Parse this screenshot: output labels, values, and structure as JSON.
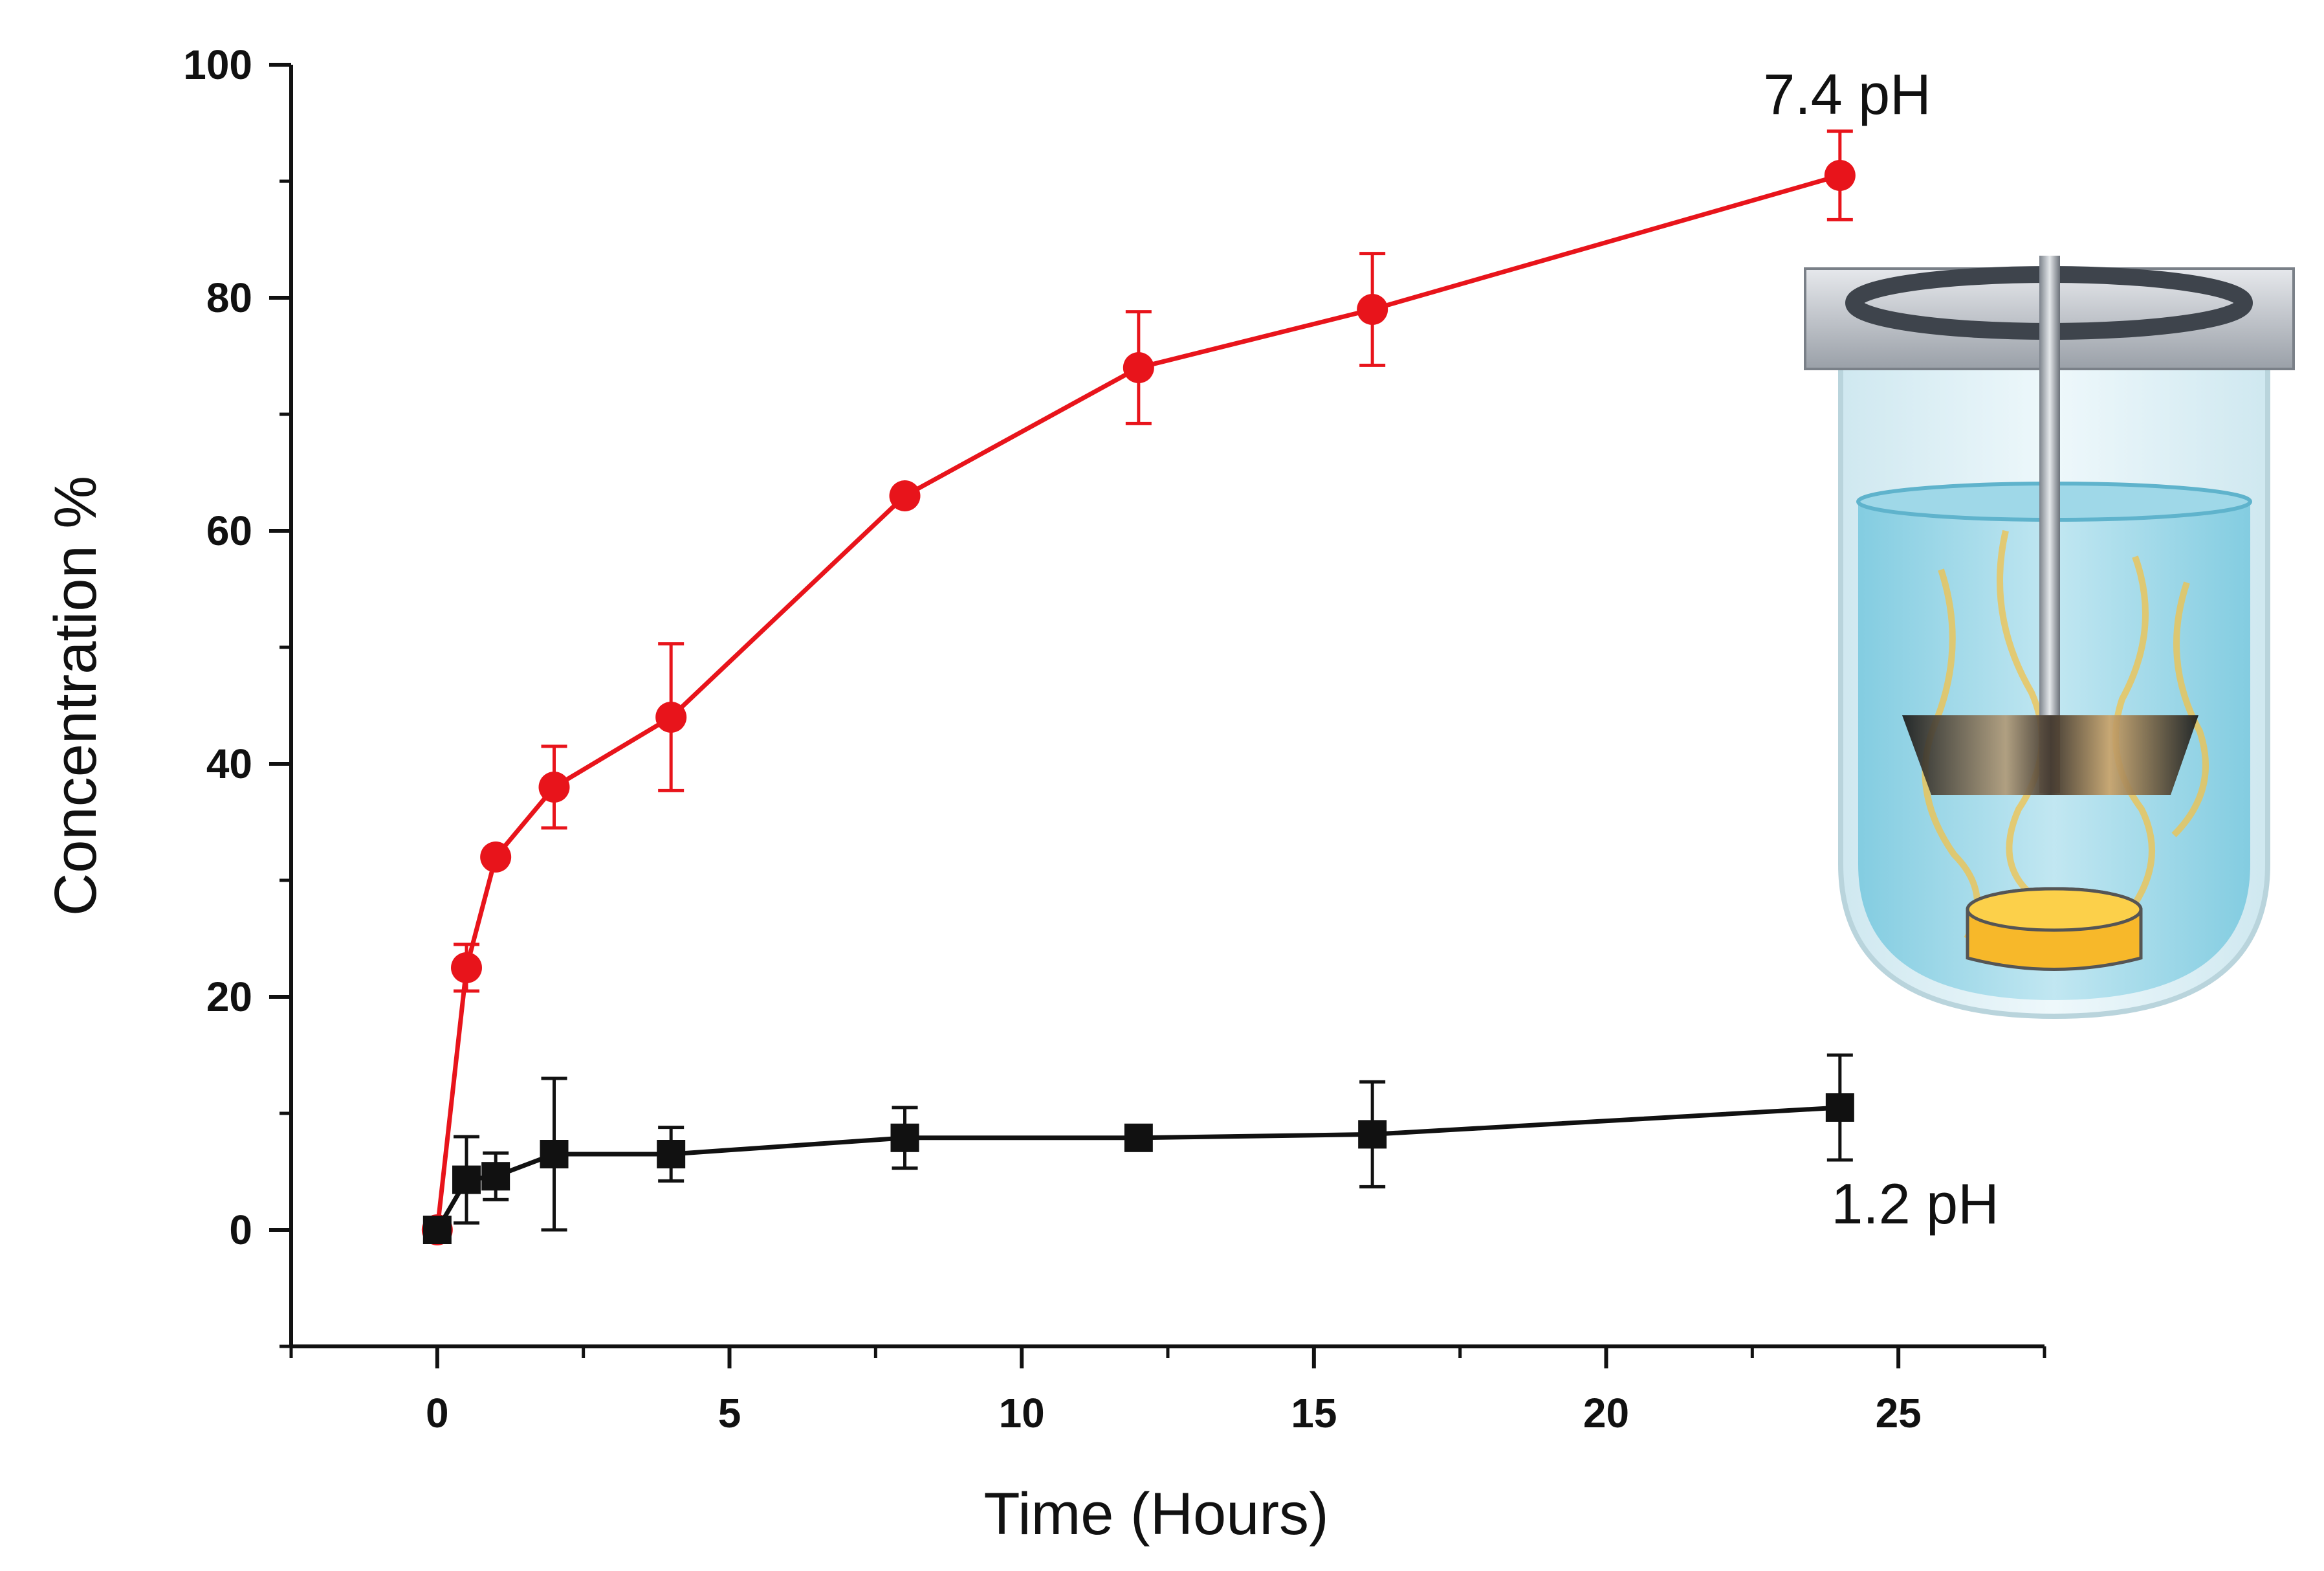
{
  "chart_data": {
    "type": "line",
    "xlabel": "Time (Hours)",
    "ylabel": "Concentration %",
    "xlim": [
      -2.5,
      27.5
    ],
    "ylim": [
      -10,
      100
    ],
    "xticks": [
      0,
      5,
      10,
      15,
      20,
      25
    ],
    "yticks": [
      0,
      20,
      40,
      60,
      80,
      100
    ],
    "grid": false,
    "series": [
      {
        "name": "7.4 pH",
        "color": "#e8141b",
        "marker": "circle",
        "x": [
          0,
          0.5,
          1,
          2,
          4,
          8,
          12,
          16,
          24
        ],
        "y": [
          0,
          22.5,
          32,
          38,
          44,
          63,
          74,
          79,
          90.5
        ],
        "err": [
          0,
          2.0,
          0,
          3.5,
          6.3,
          0,
          4.8,
          4.8,
          3.8
        ]
      },
      {
        "name": "1.2 pH",
        "color": "#111111",
        "marker": "square",
        "x": [
          0,
          0.5,
          1,
          2,
          4,
          8,
          12,
          16,
          24
        ],
        "y": [
          0,
          4.3,
          4.6,
          6.5,
          6.5,
          7.9,
          7.9,
          8.2,
          10.5
        ],
        "err": [
          0,
          3.7,
          2.0,
          6.5,
          2.3,
          2.6,
          0,
          4.5,
          4.5
        ]
      }
    ]
  }
}
